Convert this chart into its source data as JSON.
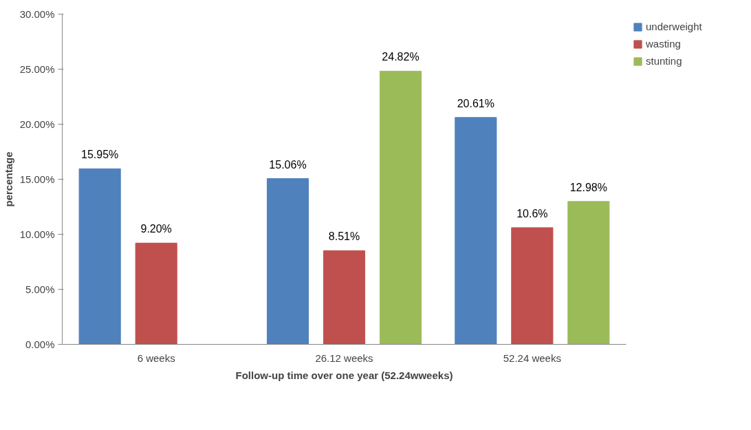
{
  "chart_data": {
    "type": "bar",
    "xlabel": "Follow-up time over one year (52.24wweeks)",
    "ylabel": "percentage",
    "categories": [
      "6 weeks",
      "26.12 weeks",
      "52.24 weeks"
    ],
    "series": [
      {
        "name": "underweight",
        "color": "#4f81bd",
        "values": [
          15.95,
          15.06,
          20.61
        ],
        "value_labels": [
          "15.95%",
          "15.06%",
          "20.61%"
        ]
      },
      {
        "name": "wasting",
        "color": "#c0504d",
        "values": [
          9.2,
          8.51,
          10.6
        ],
        "value_labels": [
          "9.20%",
          "8.51%",
          "10.6%"
        ]
      },
      {
        "name": "stunting",
        "color": "#9bbb59",
        "values": [
          null,
          24.82,
          12.98
        ],
        "value_labels": [
          null,
          "24.82%",
          "12.98%"
        ]
      }
    ],
    "ylim": [
      0,
      30
    ],
    "yticks": [
      {
        "value": 0,
        "label": "0.00%"
      },
      {
        "value": 5,
        "label": "5.00%"
      },
      {
        "value": 10,
        "label": "10.00%"
      },
      {
        "value": 15,
        "label": "15.00%"
      },
      {
        "value": 20,
        "label": "20.00%"
      },
      {
        "value": 25,
        "label": "25.00%"
      },
      {
        "value": 30,
        "label": "30.00%"
      }
    ],
    "grid": false,
    "legend": "top right"
  }
}
